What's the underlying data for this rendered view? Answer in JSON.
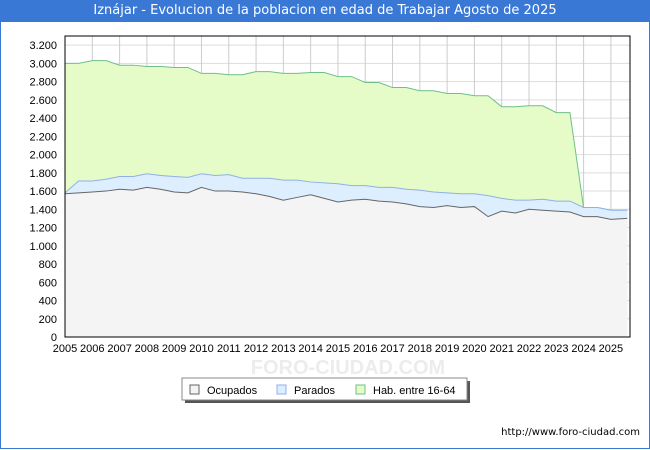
{
  "title": "Iznájar - Evolucion de la poblacion en edad de Trabajar Agosto de 2025",
  "footer": "http://www.foro-ciudad.com",
  "watermark": "FORO-CIUDAD.COM",
  "colors": {
    "ocupados_fill": "#f4f4f4",
    "ocupados_line": "#666666",
    "parados_fill": "#ddeeff",
    "parados_line": "#8fb0e8",
    "hab_fill": "#e6fcc8",
    "hab_line": "#6fbf8a"
  },
  "chart_data": {
    "type": "area",
    "title": "Iznájar - Evolucion de la poblacion en edad de Trabajar Agosto de 2025",
    "xlabel": "",
    "ylabel": "",
    "xlim": [
      2005,
      2025.7
    ],
    "ylim": [
      0,
      3300
    ],
    "yticks": [
      0,
      200,
      400,
      600,
      800,
      1000,
      1200,
      1400,
      1600,
      1800,
      2000,
      2200,
      2400,
      2600,
      2800,
      3000,
      3200
    ],
    "ytick_labels": [
      "0",
      "200",
      "400",
      "600",
      "800",
      "1.000",
      "1.200",
      "1.400",
      "1.600",
      "1.800",
      "2.000",
      "2.200",
      "2.400",
      "2.600",
      "2.800",
      "3.000",
      "3.200"
    ],
    "xticks": [
      "2005",
      "2006",
      "2007",
      "2008",
      "2009",
      "2010",
      "2011",
      "2012",
      "2013",
      "2014",
      "2015",
      "2016",
      "2017",
      "2018",
      "2019",
      "2020",
      "2021",
      "2022",
      "2023",
      "2024",
      "2025"
    ],
    "x": [
      2005,
      2005.5,
      2006,
      2006.5,
      2007,
      2007.5,
      2008,
      2008.5,
      2009,
      2009.5,
      2010,
      2010.5,
      2011,
      2011.5,
      2012,
      2012.5,
      2013,
      2013.5,
      2014,
      2014.5,
      2015,
      2015.5,
      2016,
      2016.5,
      2017,
      2017.5,
      2018,
      2018.5,
      2019,
      2019.5,
      2020,
      2020.5,
      2021,
      2021.5,
      2022,
      2022.5,
      2023,
      2023.5,
      2024,
      2024.5,
      2025,
      2025.6
    ],
    "series": [
      {
        "name": "Ocupados",
        "values": [
          1570,
          1580,
          1590,
          1600,
          1620,
          1610,
          1640,
          1620,
          1590,
          1580,
          1640,
          1600,
          1600,
          1590,
          1570,
          1540,
          1500,
          1530,
          1560,
          1520,
          1480,
          1500,
          1510,
          1490,
          1480,
          1460,
          1430,
          1420,
          1440,
          1420,
          1430,
          1320,
          1380,
          1360,
          1400,
          1390,
          1380,
          1370,
          1320,
          1320,
          1290,
          1300
        ]
      },
      {
        "name": "Parados",
        "values": [
          10,
          130,
          120,
          130,
          140,
          150,
          150,
          150,
          170,
          170,
          150,
          170,
          180,
          150,
          170,
          200,
          220,
          190,
          140,
          170,
          200,
          160,
          150,
          150,
          160,
          160,
          180,
          170,
          140,
          150,
          140,
          230,
          140,
          140,
          100,
          120,
          110,
          120,
          100,
          100,
          100,
          90
        ]
      },
      {
        "name": "Hab. entre 16-64",
        "values": [
          3000,
          3000,
          3030,
          3030,
          2980,
          2980,
          2965,
          2965,
          2955,
          2955,
          2890,
          2890,
          2875,
          2875,
          2910,
          2910,
          2890,
          2890,
          2900,
          2900,
          2855,
          2855,
          2790,
          2790,
          2735,
          2735,
          2700,
          2700,
          2670,
          2670,
          2645,
          2645,
          2525,
          2525,
          2535,
          2535,
          2460,
          2460,
          1420,
          1420,
          1390,
          1390
        ]
      }
    ],
    "legend": {
      "position": "bottom",
      "entries": [
        "Ocupados",
        "Parados",
        "Hab. entre 16-64"
      ]
    },
    "grid": true
  }
}
